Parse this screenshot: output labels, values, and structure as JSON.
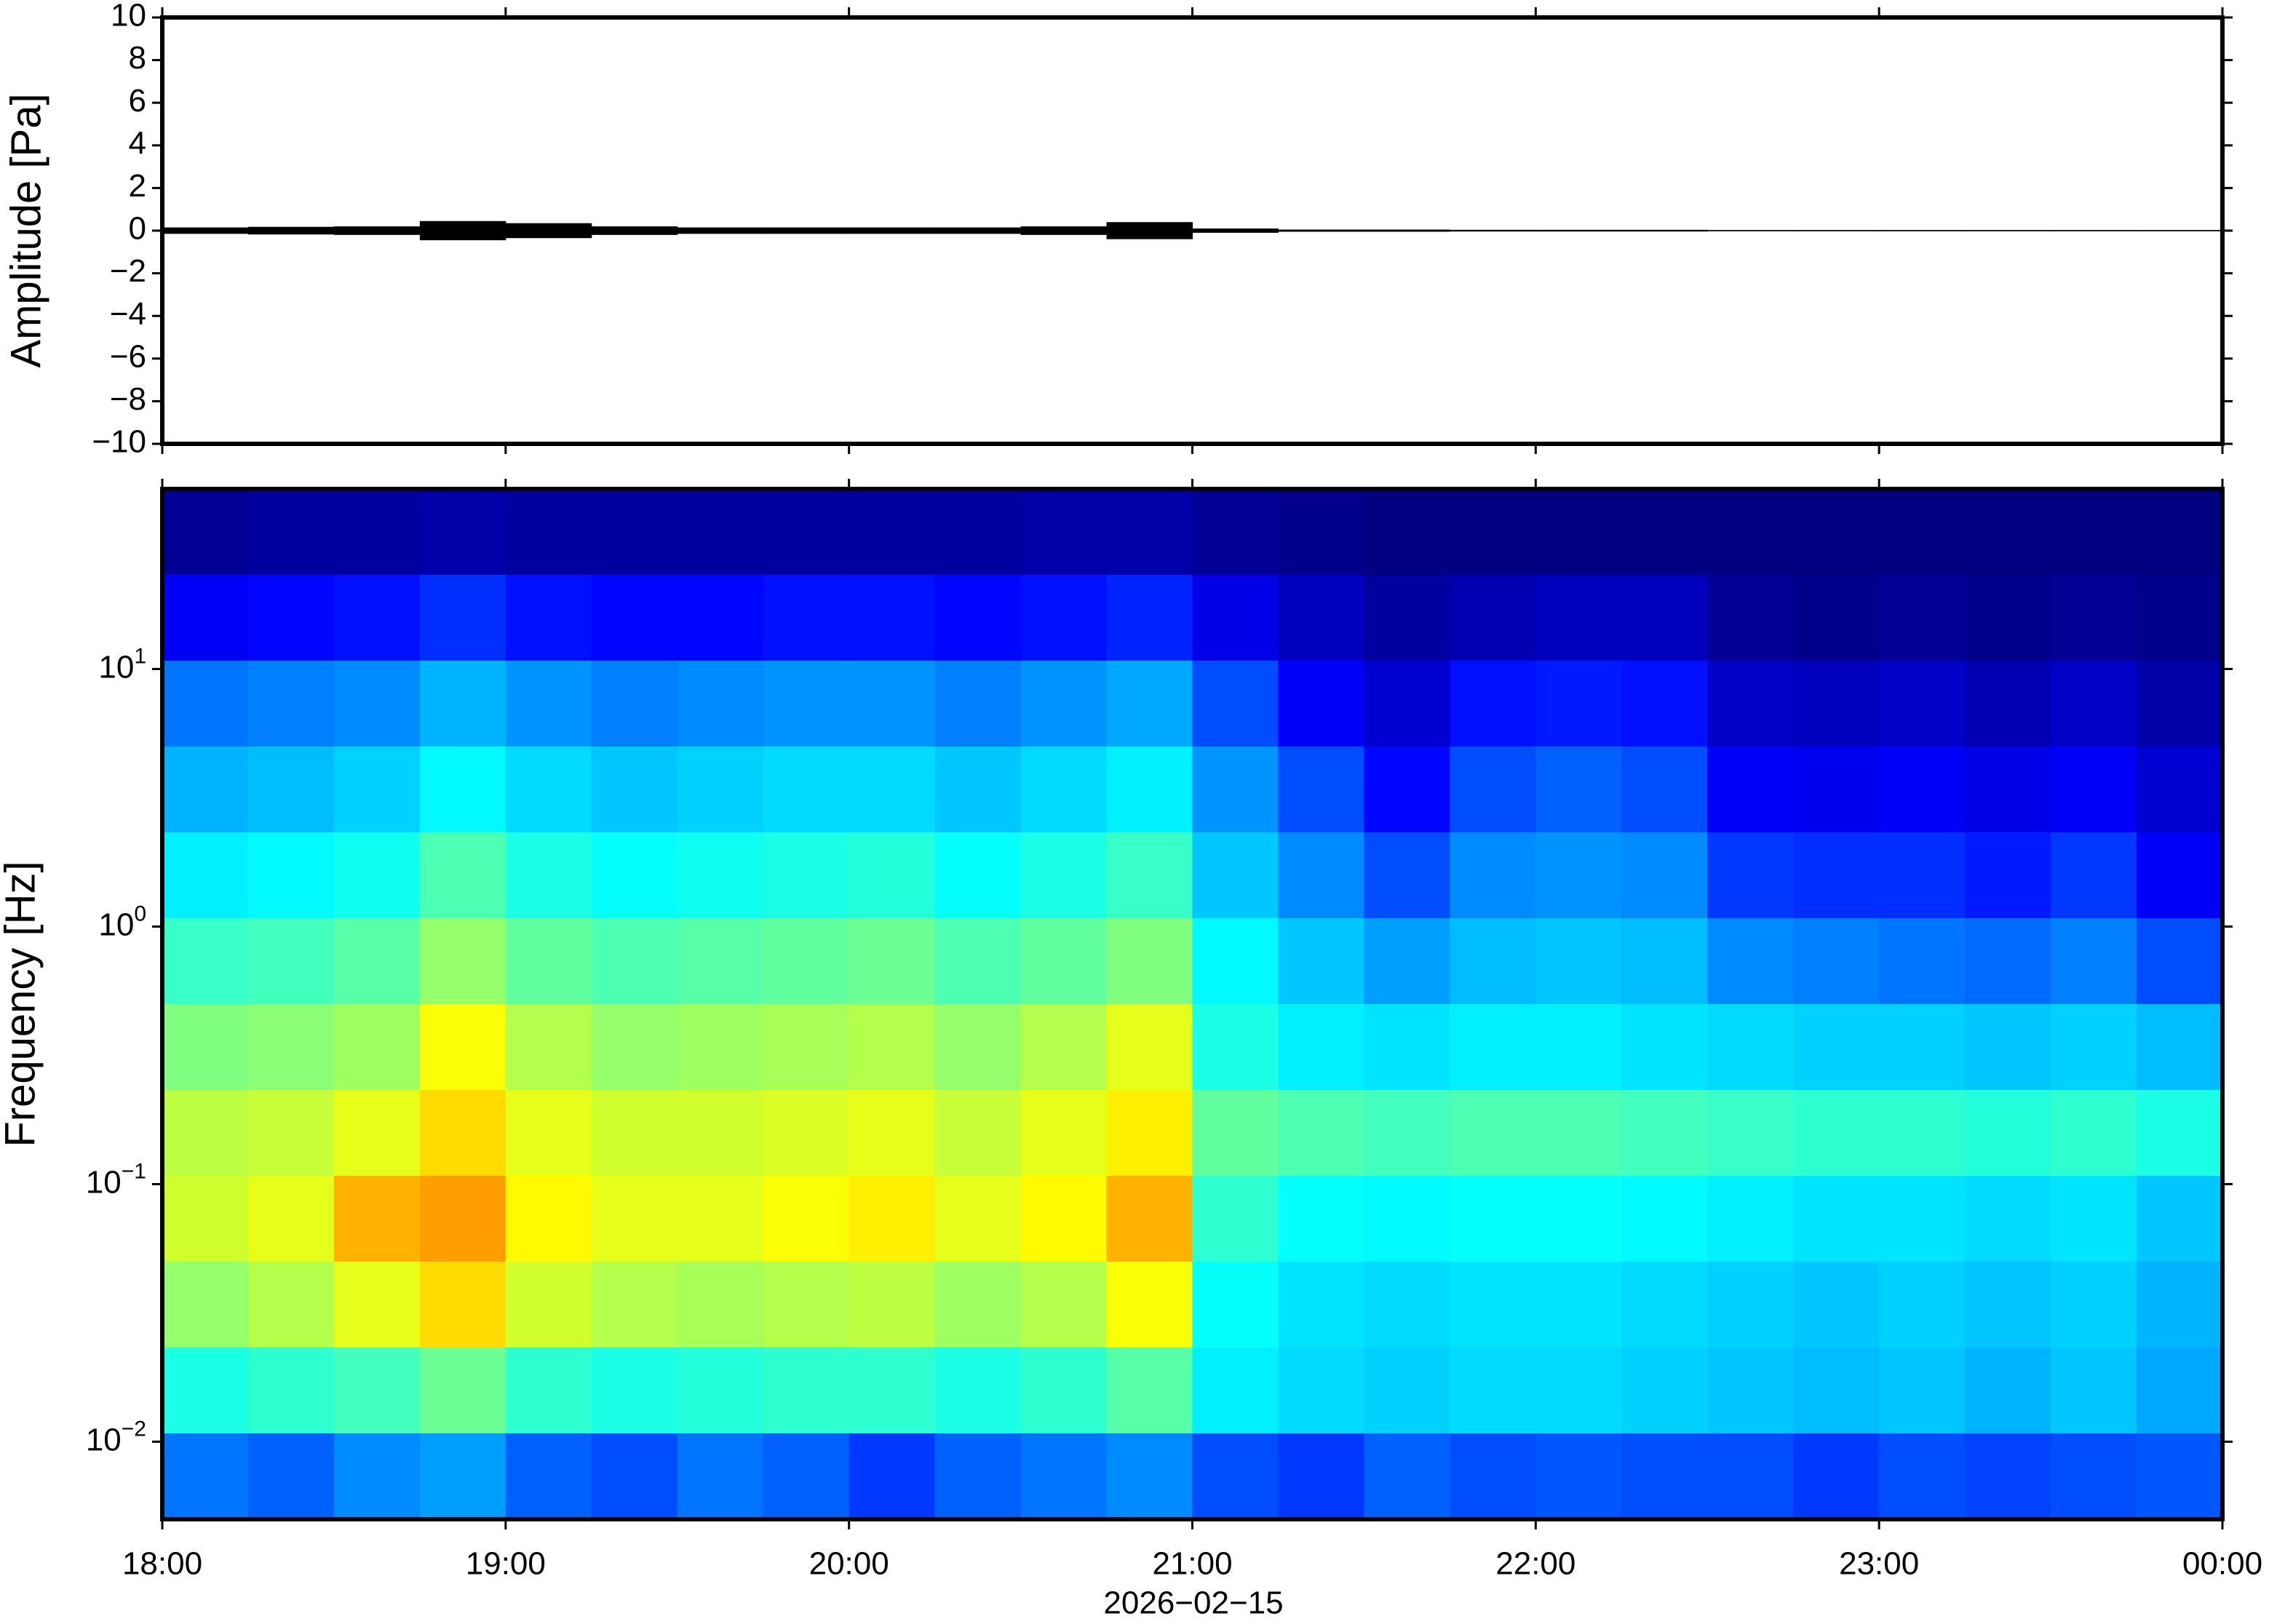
{
  "chart_data": [
    {
      "type": "area",
      "ylabel": "Amplitude [Pa]",
      "ylim": [
        -10,
        10
      ],
      "yticks": [
        {
          "value": -10,
          "label": "−10"
        },
        {
          "value": -8,
          "label": "−8"
        },
        {
          "value": -6,
          "label": "−6"
        },
        {
          "value": -4,
          "label": "−4"
        },
        {
          "value": -2,
          "label": "−2"
        },
        0,
        2,
        4,
        6,
        8,
        10
      ],
      "color": "#000000",
      "values": [
        0.15,
        0.18,
        0.2,
        0.45,
        0.35,
        0.2,
        0.15,
        0.15,
        0.15,
        0.15,
        0.2,
        0.4,
        0.1,
        0.05,
        0.05,
        0.04,
        0.04,
        0.04,
        0.03,
        0.03,
        0.03,
        0.03,
        0.03,
        0.03
      ]
    },
    {
      "type": "heatmap",
      "ylabel": "Frequency [Hz]",
      "xlabel": "2026−02−15",
      "xticks": [
        "18:00",
        "19:00",
        "20:00",
        "21:00",
        "22:00",
        "23:00",
        "00:00"
      ],
      "log_y": true,
      "ylim": [
        0.005,
        50
      ],
      "yticks": [
        {
          "value": 0.01,
          "label": "10",
          "exponent": "−2"
        },
        {
          "value": 0.1,
          "label": "10",
          "exponent": "−1"
        },
        {
          "value": 1,
          "label": "10",
          "exponent": "0"
        },
        {
          "value": 10,
          "label": "10",
          "exponent": "1"
        }
      ],
      "colormap": "jet",
      "z": [
        [
          0.02,
          0.03,
          0.03,
          0.04,
          0.03,
          0.03,
          0.03,
          0.03,
          0.03,
          0.03,
          0.04,
          0.04,
          0.02,
          0.01,
          0.0,
          0.0,
          0.0,
          0.0,
          0.0,
          0.0,
          0.0,
          0.0,
          0.0,
          0.0
        ],
        [
          0.12,
          0.13,
          0.14,
          0.17,
          0.14,
          0.13,
          0.13,
          0.14,
          0.14,
          0.13,
          0.14,
          0.16,
          0.1,
          0.06,
          0.03,
          0.05,
          0.06,
          0.06,
          0.02,
          0.01,
          0.02,
          0.01,
          0.02,
          0.01
        ],
        [
          0.24,
          0.25,
          0.26,
          0.3,
          0.27,
          0.25,
          0.26,
          0.27,
          0.27,
          0.25,
          0.27,
          0.29,
          0.2,
          0.12,
          0.08,
          0.14,
          0.15,
          0.14,
          0.07,
          0.06,
          0.07,
          0.05,
          0.07,
          0.04
        ],
        [
          0.3,
          0.31,
          0.33,
          0.37,
          0.34,
          0.32,
          0.33,
          0.34,
          0.34,
          0.32,
          0.34,
          0.36,
          0.27,
          0.2,
          0.13,
          0.2,
          0.22,
          0.2,
          0.12,
          0.11,
          0.12,
          0.1,
          0.12,
          0.08
        ],
        [
          0.36,
          0.37,
          0.39,
          0.45,
          0.4,
          0.38,
          0.39,
          0.4,
          0.41,
          0.38,
          0.4,
          0.43,
          0.32,
          0.26,
          0.2,
          0.26,
          0.27,
          0.26,
          0.18,
          0.17,
          0.17,
          0.15,
          0.18,
          0.12
        ],
        [
          0.43,
          0.44,
          0.46,
          0.52,
          0.47,
          0.45,
          0.46,
          0.47,
          0.48,
          0.45,
          0.47,
          0.5,
          0.37,
          0.32,
          0.28,
          0.31,
          0.32,
          0.31,
          0.26,
          0.25,
          0.24,
          0.23,
          0.25,
          0.2
        ],
        [
          0.5,
          0.51,
          0.53,
          0.62,
          0.55,
          0.52,
          0.53,
          0.54,
          0.55,
          0.52,
          0.55,
          0.6,
          0.4,
          0.36,
          0.35,
          0.36,
          0.36,
          0.35,
          0.34,
          0.33,
          0.33,
          0.32,
          0.33,
          0.31
        ],
        [
          0.56,
          0.57,
          0.6,
          0.66,
          0.6,
          0.58,
          0.58,
          0.59,
          0.6,
          0.57,
          0.6,
          0.64,
          0.47,
          0.45,
          0.44,
          0.45,
          0.45,
          0.44,
          0.43,
          0.42,
          0.42,
          0.41,
          0.42,
          0.4
        ],
        [
          0.58,
          0.6,
          0.7,
          0.72,
          0.63,
          0.6,
          0.6,
          0.62,
          0.64,
          0.6,
          0.63,
          0.7,
          0.42,
          0.38,
          0.37,
          0.38,
          0.38,
          0.37,
          0.36,
          0.35,
          0.35,
          0.34,
          0.35,
          0.32
        ],
        [
          0.52,
          0.55,
          0.6,
          0.66,
          0.58,
          0.55,
          0.54,
          0.55,
          0.56,
          0.53,
          0.55,
          0.62,
          0.38,
          0.35,
          0.34,
          0.35,
          0.35,
          0.34,
          0.33,
          0.32,
          0.33,
          0.32,
          0.33,
          0.3
        ],
        [
          0.4,
          0.42,
          0.44,
          0.48,
          0.42,
          0.4,
          0.41,
          0.42,
          0.42,
          0.4,
          0.42,
          0.46,
          0.36,
          0.34,
          0.33,
          0.34,
          0.34,
          0.33,
          0.32,
          0.31,
          0.32,
          0.3,
          0.32,
          0.29
        ],
        [
          0.24,
          0.22,
          0.26,
          0.28,
          0.22,
          0.2,
          0.24,
          0.22,
          0.18,
          0.22,
          0.24,
          0.26,
          0.2,
          0.18,
          0.22,
          0.2,
          0.21,
          0.2,
          0.2,
          0.18,
          0.2,
          0.19,
          0.2,
          0.21
        ]
      ]
    }
  ]
}
